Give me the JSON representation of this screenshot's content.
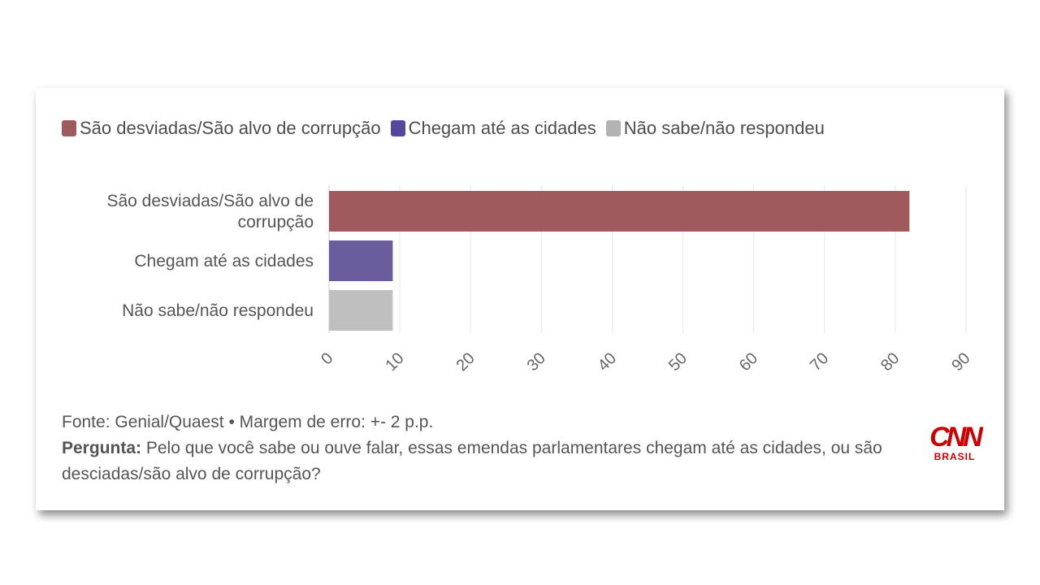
{
  "chart_data": {
    "type": "bar",
    "orientation": "horizontal",
    "categories": [
      [
        "São desviadas/São alvo de",
        "corrupção"
      ],
      [
        "Chegam até as cidades"
      ],
      [
        "Não sabe/não respondeu"
      ]
    ],
    "values": [
      82,
      9,
      9
    ],
    "colors": [
      "#9e5a5c",
      "#6b5c9e",
      "#bfbfbf"
    ],
    "legend": [
      {
        "label": "São desviadas/São alvo de corrupção",
        "color": "#9e5a5c"
      },
      {
        "label": "Chegam até as cidades",
        "color": "#5546a0"
      },
      {
        "label": "Não sabe/não respondeu",
        "color": "#b3b3b3"
      }
    ],
    "legend_position": "top-left",
    "xlim": [
      0,
      90
    ],
    "xticks": [
      0,
      10,
      20,
      30,
      40,
      50,
      60,
      70,
      80,
      90
    ],
    "grid": true
  },
  "footer": {
    "source": "Fonte: Genial/Quaest • Margem de erro: +- 2 p.p.",
    "question_label": "Pergunta:",
    "question_text": " Pelo que você sabe ou ouve falar, essas emendas parlamentares chegam até as cidades, ou são desciadas/são alvo de corrupção?"
  },
  "logo": {
    "main": "CNN",
    "sub": "BRASIL",
    "color": "#cc0000"
  }
}
